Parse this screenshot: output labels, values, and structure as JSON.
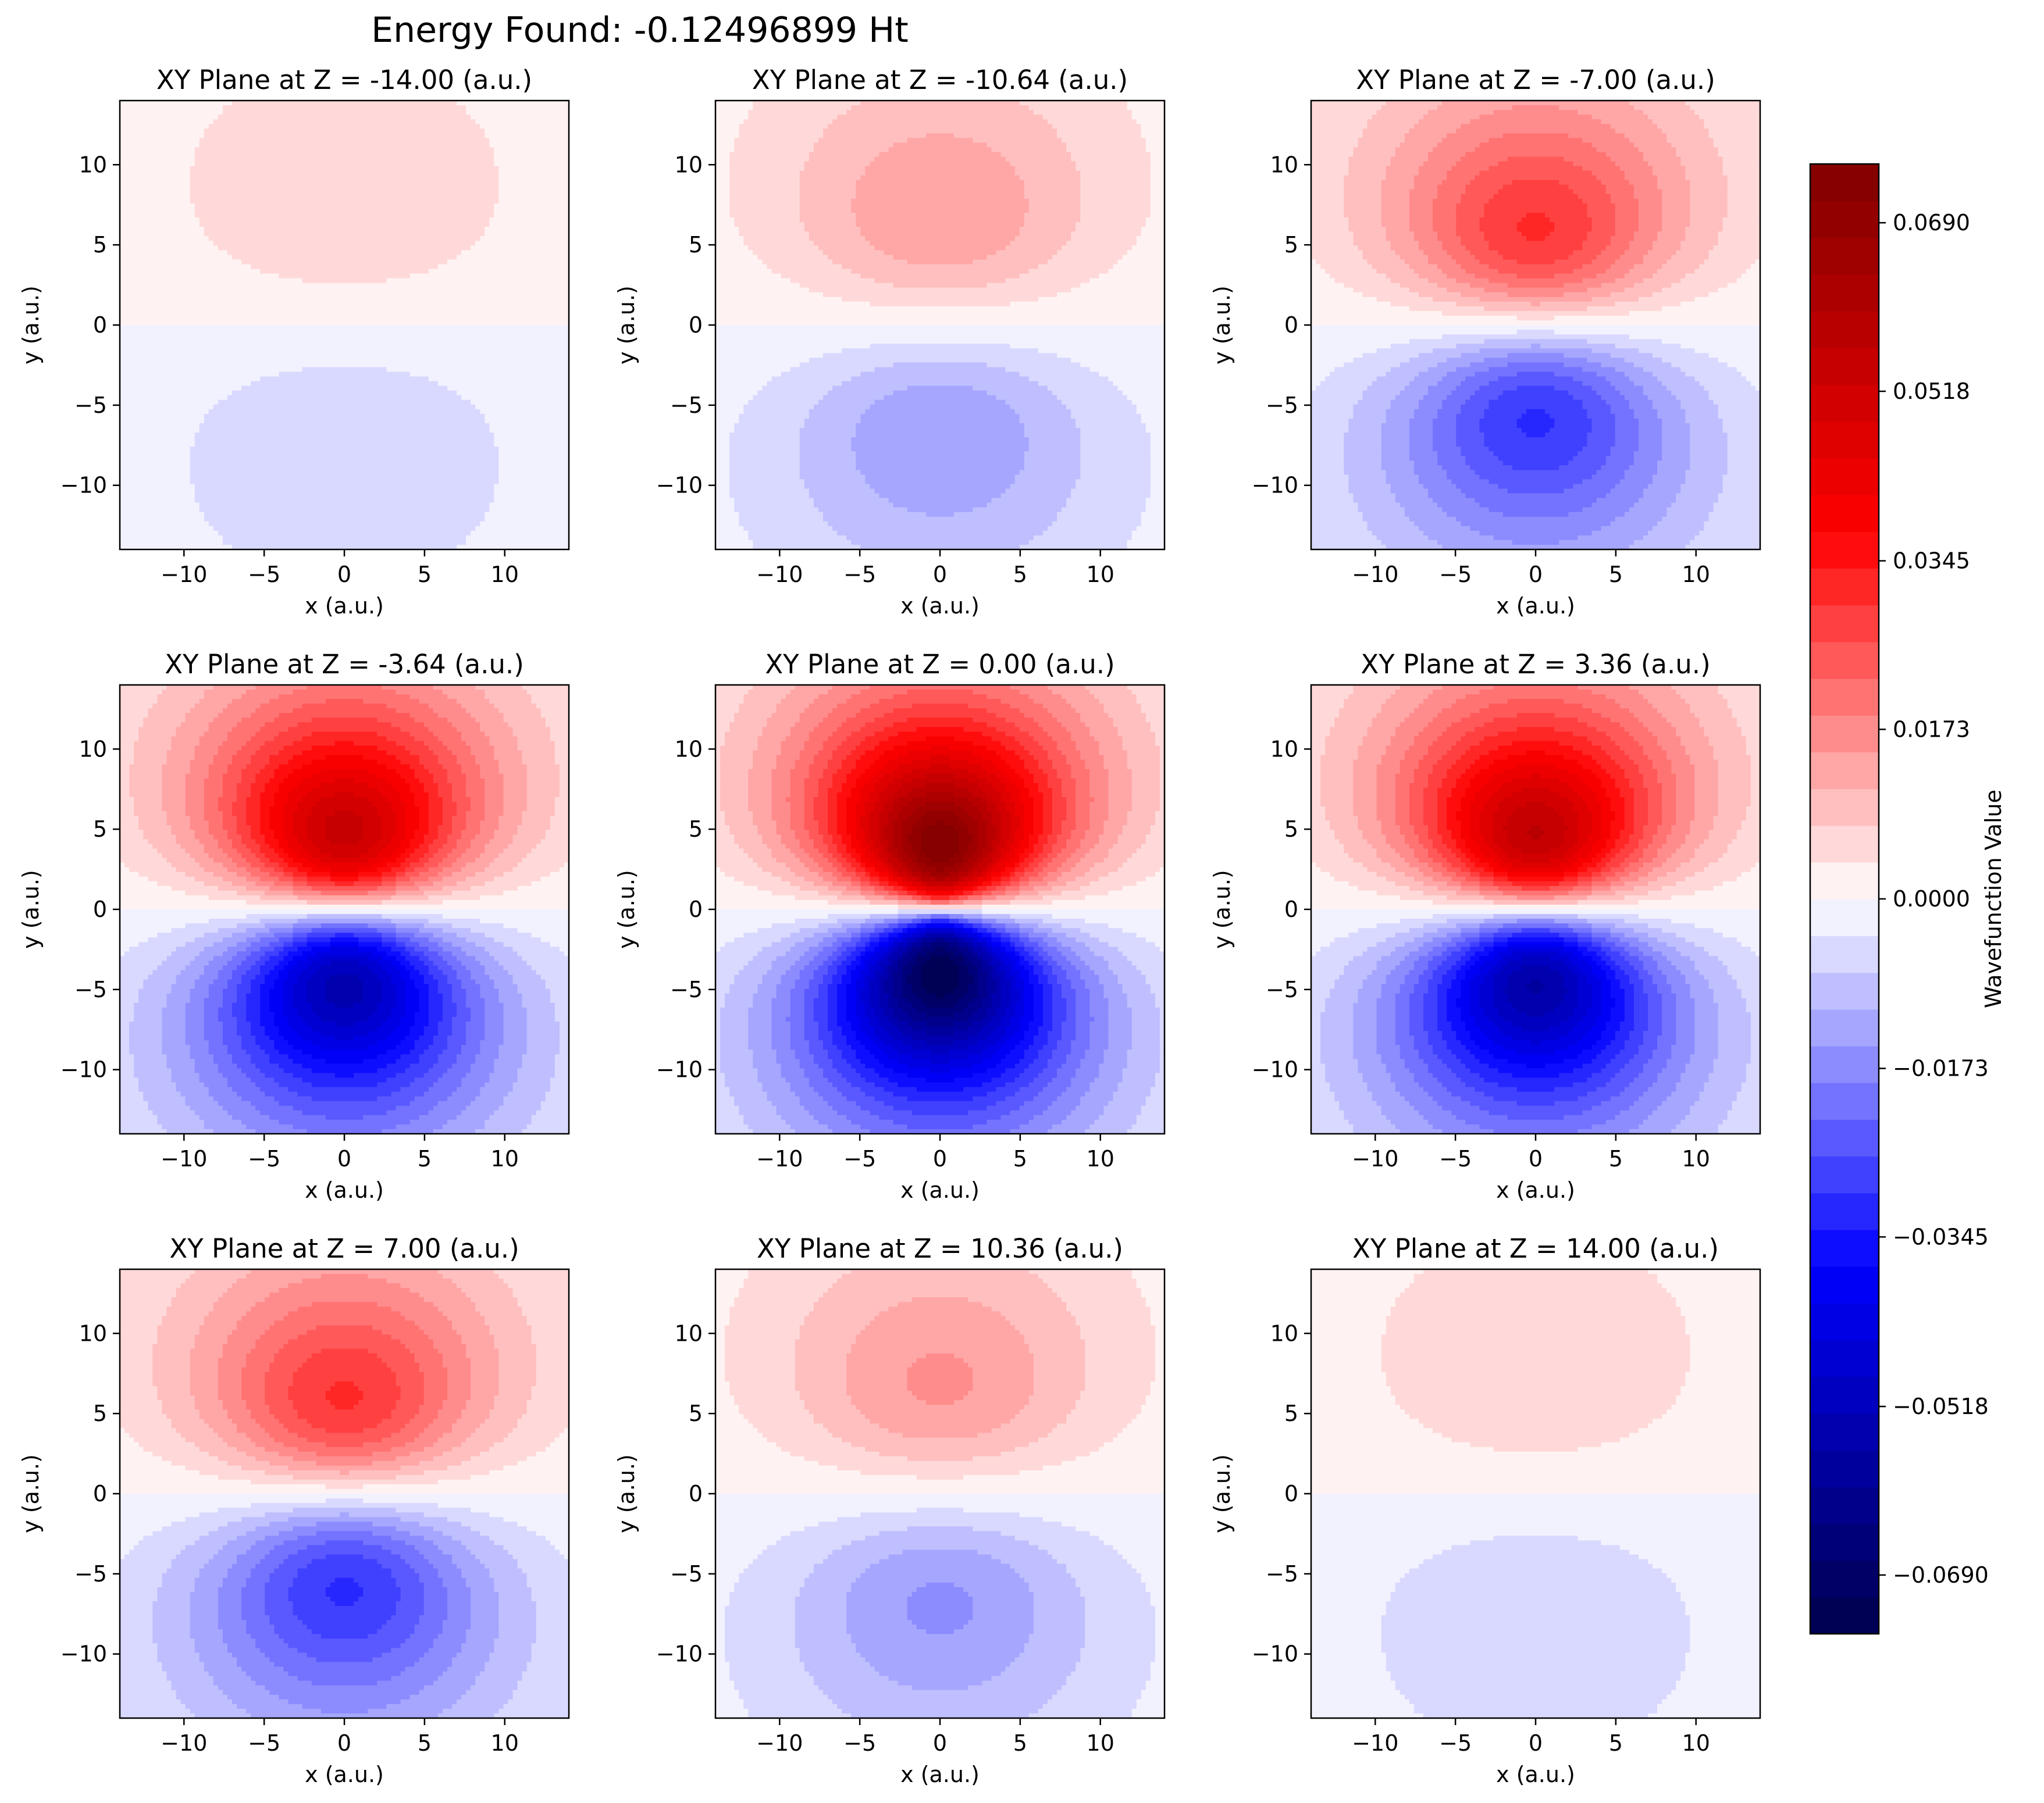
{
  "figure": {
    "suptitle": "Energy Found: -0.12496899 Ht"
  },
  "chart_data": {
    "type": "heatmap",
    "title": "Energy Found: -0.12496899 Ht",
    "subplots": [
      {
        "title": "XY Plane at Z = -14.00 (a.u.)",
        "z": -14.0
      },
      {
        "title": "XY Plane at Z = -10.64 (a.u.)",
        "z": -10.64
      },
      {
        "title": "XY Plane at Z = -7.00 (a.u.)",
        "z": -7.0
      },
      {
        "title": "XY Plane at Z = -3.64 (a.u.)",
        "z": -3.64
      },
      {
        "title": "XY Plane at Z = 0.00 (a.u.)",
        "z": 0.0
      },
      {
        "title": "XY Plane at Z = 3.36 (a.u.)",
        "z": 3.36
      },
      {
        "title": "XY Plane at Z = 7.00 (a.u.)",
        "z": 7.0
      },
      {
        "title": "XY Plane at Z = 10.36 (a.u.)",
        "z": 10.36
      },
      {
        "title": "XY Plane at Z = 14.00 (a.u.)",
        "z": 14.0
      }
    ],
    "xlabel": "x (a.u.)",
    "ylabel": "y (a.u.)",
    "xlim": [
      -14,
      14
    ],
    "ylim": [
      -14,
      14
    ],
    "xticks": [
      -10,
      -5,
      0,
      5,
      10
    ],
    "yticks": [
      -10,
      -5,
      0,
      5,
      10
    ],
    "xtick_labels": [
      "−10",
      "−5",
      "0",
      "5",
      "10"
    ],
    "ytick_labels": [
      "−10",
      "−5",
      "0",
      "5",
      "10"
    ],
    "grid": false,
    "colormap": "seismic",
    "field_shape": "p-like orbital lobes, positive for y > 0 and negative for y < 0",
    "colorbar": {
      "label": "Wavefunction Value",
      "vmin": -0.075,
      "vmax": 0.075,
      "ticks": [
        -0.069,
        -0.0518,
        -0.0345,
        -0.0173,
        0.0,
        0.0173,
        0.0345,
        0.0518,
        0.069
      ],
      "tick_labels": [
        "−0.0690",
        "−0.0518",
        "−0.0345",
        "−0.0173",
        "0.0000",
        "0.0173",
        "0.0345",
        "0.0518",
        "0.0690"
      ],
      "levels": 40
    },
    "colors": {
      "positive_max": "#6b0000",
      "negative_min": "#00004c",
      "zero": "#ffffff"
    }
  }
}
